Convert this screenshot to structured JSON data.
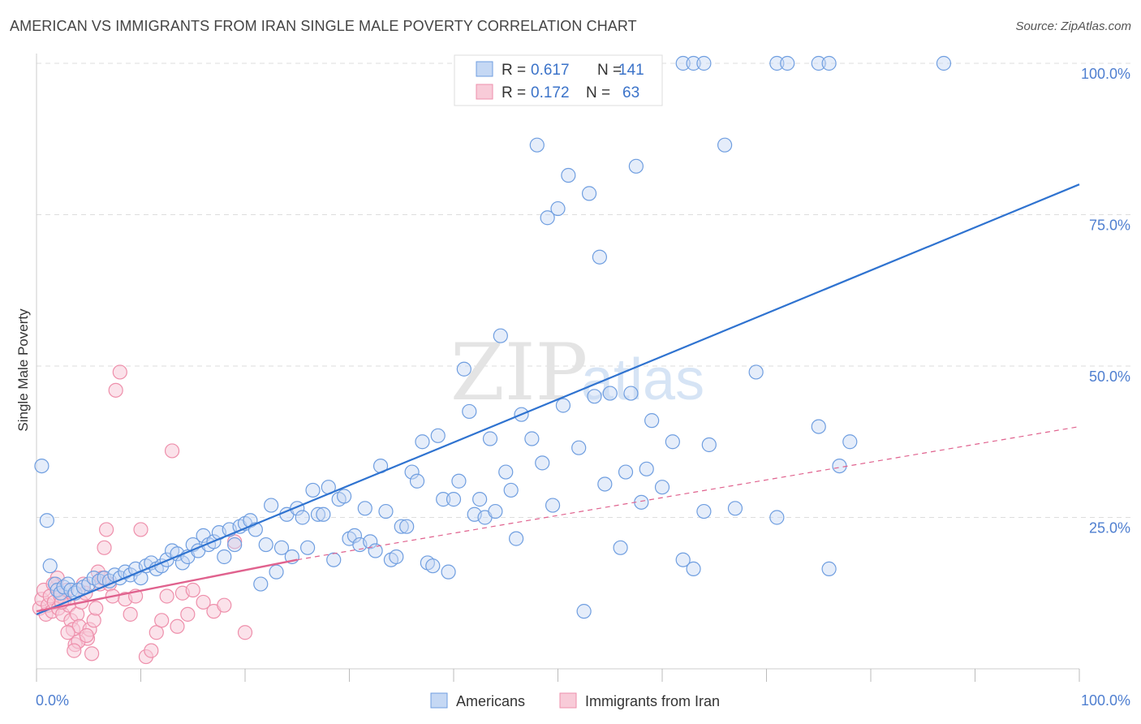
{
  "title": "AMERICAN VS IMMIGRANTS FROM IRAN SINGLE MALE POVERTY CORRELATION CHART",
  "source": "Source: ZipAtlas.com",
  "watermark": {
    "zip": "ZIP",
    "atlas": "atlas"
  },
  "colors": {
    "americans": "#6f9ee0",
    "americans_fill": "#c5d8f4",
    "americans_line": "#2f73d0",
    "iran": "#ee8fab",
    "iran_fill": "#f8cbd8",
    "iran_line": "#e0628e",
    "grid": "#dddddd",
    "tick_text": "#4f7fd0"
  },
  "legend": {
    "rows": [
      {
        "r_label": "R = ",
        "r_value": "0.617",
        "n_label": "N = ",
        "n_value": "141"
      },
      {
        "r_label": "R = ",
        "r_value": "0.172",
        "n_label": "N = ",
        "n_value": "63"
      }
    ]
  },
  "chart_data": {
    "type": "scatter",
    "xlabel": "",
    "ylabel": "Single Male Poverty",
    "xlim": [
      0,
      100
    ],
    "ylim": [
      0,
      100
    ],
    "x_tick_labels": [
      "0.0%",
      "100.0%"
    ],
    "y_tick_labels": [
      {
        "value": 100,
        "label": "100.0%"
      },
      {
        "value": 75,
        "label": "75.0%"
      },
      {
        "value": 50,
        "label": "50.0%"
      },
      {
        "value": 25,
        "label": "25.0%"
      }
    ],
    "grid": true,
    "legend_position": "top-center",
    "series": [
      {
        "name": "Americans",
        "trend": {
          "x": [
            0,
            100
          ],
          "y": [
            9,
            80
          ]
        },
        "points": [
          [
            0.5,
            33.5
          ],
          [
            1,
            24.5
          ],
          [
            1.3,
            17
          ],
          [
            1.8,
            14
          ],
          [
            2,
            13
          ],
          [
            2.3,
            12.5
          ],
          [
            2.6,
            13.5
          ],
          [
            3,
            14
          ],
          [
            3.3,
            13
          ],
          [
            3.7,
            12.5
          ],
          [
            4,
            13
          ],
          [
            4.5,
            13.5
          ],
          [
            5,
            14
          ],
          [
            5.5,
            15
          ],
          [
            6,
            14.5
          ],
          [
            6.5,
            15
          ],
          [
            7,
            14.5
          ],
          [
            7.5,
            15.5
          ],
          [
            8,
            15
          ],
          [
            8.5,
            16
          ],
          [
            9,
            15.5
          ],
          [
            9.5,
            16.5
          ],
          [
            10,
            15
          ],
          [
            10.5,
            17
          ],
          [
            11,
            17.5
          ],
          [
            11.5,
            16.5
          ],
          [
            12,
            17
          ],
          [
            12.5,
            18
          ],
          [
            13,
            19.5
          ],
          [
            13.5,
            19
          ],
          [
            14,
            17.5
          ],
          [
            14.5,
            18.5
          ],
          [
            15,
            20.5
          ],
          [
            15.5,
            19.5
          ],
          [
            16,
            22
          ],
          [
            16.5,
            20.5
          ],
          [
            17,
            21
          ],
          [
            17.5,
            22.5
          ],
          [
            18,
            18.5
          ],
          [
            18.5,
            23
          ],
          [
            19,
            20.5
          ],
          [
            19.5,
            23.5
          ],
          [
            20,
            24
          ],
          [
            20.5,
            24.5
          ],
          [
            21,
            23
          ],
          [
            21.5,
            14
          ],
          [
            22,
            20.5
          ],
          [
            22.5,
            27
          ],
          [
            23,
            16
          ],
          [
            23.5,
            20
          ],
          [
            24,
            25.5
          ],
          [
            24.5,
            18.5
          ],
          [
            25,
            26.5
          ],
          [
            25.5,
            25
          ],
          [
            26,
            20
          ],
          [
            26.5,
            29.5
          ],
          [
            27,
            25.5
          ],
          [
            27.5,
            25.5
          ],
          [
            28,
            30
          ],
          [
            28.5,
            18
          ],
          [
            29,
            28
          ],
          [
            29.5,
            28.5
          ],
          [
            30,
            21.5
          ],
          [
            30.5,
            22
          ],
          [
            31,
            20.5
          ],
          [
            31.5,
            26.5
          ],
          [
            32,
            21
          ],
          [
            32.5,
            19.5
          ],
          [
            33,
            33.5
          ],
          [
            33.5,
            26
          ],
          [
            34,
            18
          ],
          [
            34.5,
            18.5
          ],
          [
            35,
            23.5
          ],
          [
            35.5,
            23.5
          ],
          [
            36,
            32.5
          ],
          [
            36.5,
            31
          ],
          [
            37,
            37.5
          ],
          [
            37.5,
            17.5
          ],
          [
            38,
            17
          ],
          [
            38.5,
            38.5
          ],
          [
            39,
            28
          ],
          [
            39.5,
            16
          ],
          [
            40,
            28
          ],
          [
            40.5,
            31
          ],
          [
            41,
            49.5
          ],
          [
            41.5,
            42.5
          ],
          [
            42,
            25.5
          ],
          [
            42.5,
            28
          ],
          [
            43,
            25
          ],
          [
            43.5,
            38
          ],
          [
            44,
            26
          ],
          [
            44.5,
            55
          ],
          [
            45,
            32.5
          ],
          [
            45.5,
            29.5
          ],
          [
            46,
            21.5
          ],
          [
            46.5,
            42
          ],
          [
            47.5,
            38
          ],
          [
            48,
            86.5
          ],
          [
            48.5,
            34
          ],
          [
            49,
            74.5
          ],
          [
            49.5,
            27
          ],
          [
            50,
            76
          ],
          [
            50.5,
            43.5
          ],
          [
            51,
            81.5
          ],
          [
            52,
            36.5
          ],
          [
            52.5,
            9.5
          ],
          [
            53,
            78.5
          ],
          [
            53.5,
            45
          ],
          [
            54,
            68
          ],
          [
            54.5,
            30.5
          ],
          [
            55,
            45.5
          ],
          [
            56,
            20
          ],
          [
            56.5,
            32.5
          ],
          [
            57,
            45.5
          ],
          [
            57.5,
            83
          ],
          [
            58,
            27.5
          ],
          [
            58.5,
            33
          ],
          [
            59,
            41
          ],
          [
            60,
            30
          ],
          [
            61,
            37.5
          ],
          [
            62,
            18
          ],
          [
            63,
            16.5
          ],
          [
            64,
            26
          ],
          [
            64.5,
            37
          ],
          [
            66,
            86.5
          ],
          [
            67,
            26.5
          ],
          [
            69,
            49
          ],
          [
            71,
            25
          ],
          [
            75,
            40
          ],
          [
            76,
            16.5
          ],
          [
            77,
            33.5
          ],
          [
            78,
            37.5
          ],
          [
            47.5,
            100
          ],
          [
            59,
            100
          ],
          [
            62,
            100
          ],
          [
            63,
            100
          ],
          [
            64,
            100
          ],
          [
            71,
            100
          ],
          [
            72,
            100
          ],
          [
            75,
            100
          ],
          [
            76,
            100
          ],
          [
            87,
            100
          ]
        ]
      },
      {
        "name": "Immigrants from Iran",
        "trend": {
          "x": [
            0,
            25
          ],
          "y": [
            9.5,
            18
          ]
        },
        "trend_dashed": {
          "x": [
            25,
            100
          ],
          "y": [
            18,
            40
          ]
        },
        "points": [
          [
            0.3,
            10
          ],
          [
            0.5,
            11.5
          ],
          [
            0.7,
            13
          ],
          [
            0.9,
            9
          ],
          [
            1.1,
            10.5
          ],
          [
            1.3,
            12
          ],
          [
            1.5,
            9.5
          ],
          [
            1.7,
            11
          ],
          [
            1.9,
            13.5
          ],
          [
            2.1,
            10
          ],
          [
            2.3,
            12
          ],
          [
            2.5,
            9
          ],
          [
            2.7,
            11.5
          ],
          [
            2.9,
            13
          ],
          [
            3.1,
            10.5
          ],
          [
            3.3,
            8
          ],
          [
            3.5,
            6.5
          ],
          [
            3.7,
            4
          ],
          [
            3.9,
            9
          ],
          [
            4.1,
            7
          ],
          [
            4.3,
            11
          ],
          [
            4.5,
            14
          ],
          [
            4.7,
            12.5
          ],
          [
            4.9,
            5
          ],
          [
            5.1,
            6.5
          ],
          [
            5.3,
            2.5
          ],
          [
            5.5,
            8
          ],
          [
            5.7,
            10
          ],
          [
            5.9,
            16
          ],
          [
            6.1,
            14
          ],
          [
            6.3,
            15
          ],
          [
            6.5,
            20
          ],
          [
            6.7,
            23
          ],
          [
            7,
            14
          ],
          [
            7.3,
            12
          ],
          [
            7.6,
            46
          ],
          [
            8,
            49
          ],
          [
            8.5,
            11.5
          ],
          [
            9,
            9
          ],
          [
            9.5,
            12
          ],
          [
            10,
            23
          ],
          [
            10.5,
            2
          ],
          [
            11,
            3
          ],
          [
            11.5,
            6
          ],
          [
            12,
            8
          ],
          [
            12.5,
            12
          ],
          [
            13,
            36
          ],
          [
            13.5,
            7
          ],
          [
            14,
            12.5
          ],
          [
            14.5,
            9
          ],
          [
            15,
            13
          ],
          [
            16,
            11
          ],
          [
            17,
            9.5
          ],
          [
            18,
            10.5
          ],
          [
            19,
            21
          ],
          [
            20,
            6
          ],
          [
            2,
            15
          ],
          [
            3,
            6
          ],
          [
            4,
            4.5
          ],
          [
            1.6,
            14
          ],
          [
            2.4,
            11
          ],
          [
            3.6,
            3
          ],
          [
            4.8,
            5.5
          ]
        ]
      }
    ]
  },
  "bottom_legend": [
    "Americans",
    "Immigrants from Iran"
  ]
}
